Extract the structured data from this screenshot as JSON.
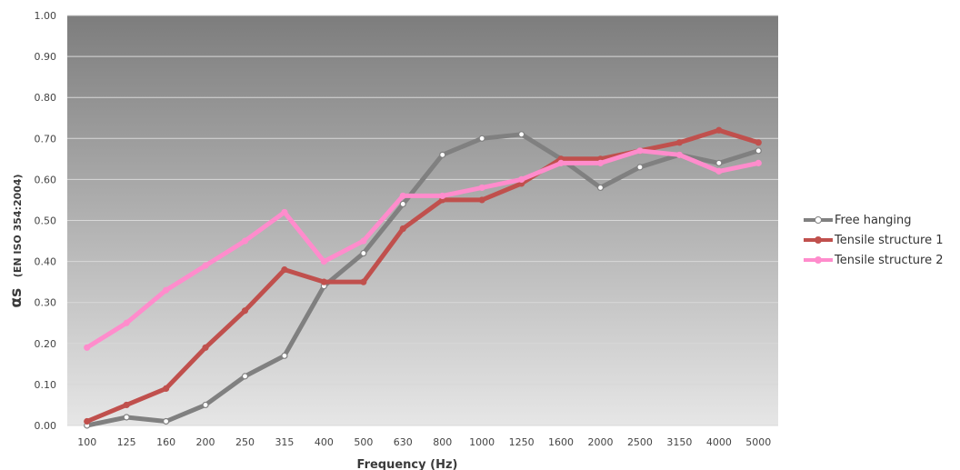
{
  "chart_data": {
    "type": "line",
    "xlabel": "Frequency (Hz)",
    "ylabel_main": "αs",
    "ylabel_sub": "(EN ISO 354:2004)",
    "categories": [
      "100",
      "125",
      "160",
      "200",
      "250",
      "315",
      "400",
      "500",
      "630",
      "800",
      "1000",
      "1250",
      "1600",
      "2000",
      "2500",
      "3150",
      "4000",
      "5000"
    ],
    "ylim": [
      0,
      1
    ],
    "yticks": [
      "0.00",
      "0.10",
      "0.20",
      "0.30",
      "0.40",
      "0.50",
      "0.60",
      "0.70",
      "0.80",
      "0.90",
      "1.00"
    ],
    "grid": true,
    "legend_position": "right",
    "series": [
      {
        "name": "Free hanging",
        "color": "#808080",
        "marker_fill": "#ffffff",
        "values": [
          0.0,
          0.02,
          0.01,
          0.05,
          0.12,
          0.17,
          0.34,
          0.42,
          0.54,
          0.66,
          0.7,
          0.71,
          0.65,
          0.58,
          0.63,
          0.66,
          0.64,
          0.67
        ]
      },
      {
        "name": "Tensile structure 1",
        "color": "#c0504d",
        "marker_fill": "#c0504d",
        "values": [
          0.01,
          0.05,
          0.09,
          0.19,
          0.28,
          0.38,
          0.35,
          0.35,
          0.48,
          0.55,
          0.55,
          0.59,
          0.65,
          0.65,
          0.67,
          0.69,
          0.72,
          0.69
        ]
      },
      {
        "name": "Tensile structure 2",
        "color": "#ff8ccc",
        "marker_fill": "#ff8ccc",
        "values": [
          0.19,
          0.25,
          0.33,
          0.39,
          0.45,
          0.52,
          0.4,
          0.45,
          0.56,
          0.56,
          0.58,
          0.6,
          0.64,
          0.64,
          0.67,
          0.66,
          0.62,
          0.64
        ]
      }
    ]
  }
}
